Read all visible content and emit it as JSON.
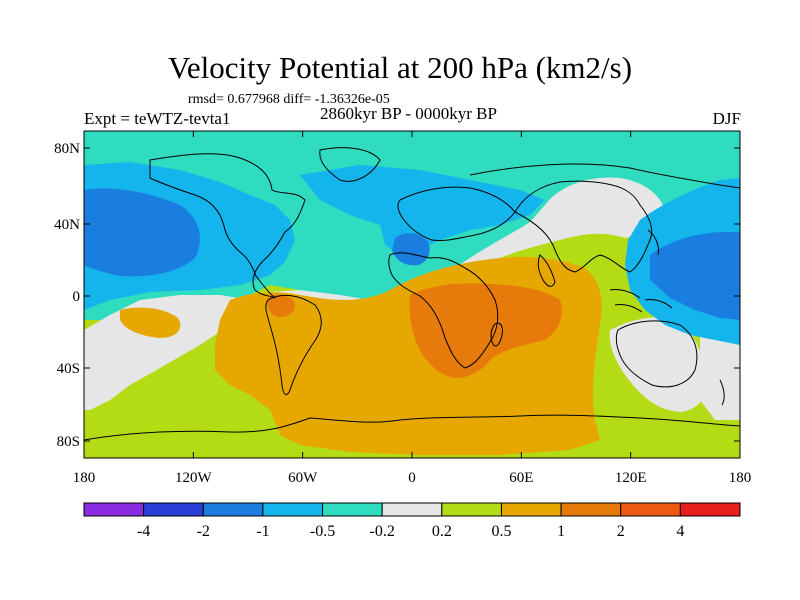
{
  "title": "Velocity Potential at 200 hPa (km2/s)",
  "stats": "rmsd= 0.677968 diff= -1.36326e-05",
  "experiment": "Expt = teWTZ-tevta1",
  "period": "2860kyr BP - 0000kyr BP",
  "season": "DJF",
  "lat_labels": [
    "80N",
    "40N",
    "0",
    "40S",
    "80S"
  ],
  "lon_labels": [
    "180",
    "120W",
    "60W",
    "0",
    "60E",
    "120E",
    "180"
  ],
  "colorbar": {
    "labels": [
      "-4",
      "-2",
      "-1",
      "-0.5",
      "-0.2",
      "0.2",
      "0.5",
      "1",
      "2",
      "4"
    ],
    "colors": [
      "#8a2be2",
      "#2a3ed8",
      "#1a7ee0",
      "#14b4ec",
      "#2fdcc0",
      "#e6e6e6",
      "#b4dc14",
      "#e6a800",
      "#e67a0a",
      "#ee5a14",
      "#e61e1e"
    ]
  },
  "field": {
    "background_color": "#b4dc14",
    "notes_colors": {
      "strong_negative": "#1a7ee0",
      "moderate_negative": "#14b4ec",
      "weak_negative": "#2fdcc0",
      "near_zero": "#e6e6e6",
      "weak_positive": "#b4dc14",
      "moderate_positive": "#e6a800",
      "strong_positive": "#e67a0a"
    }
  }
}
